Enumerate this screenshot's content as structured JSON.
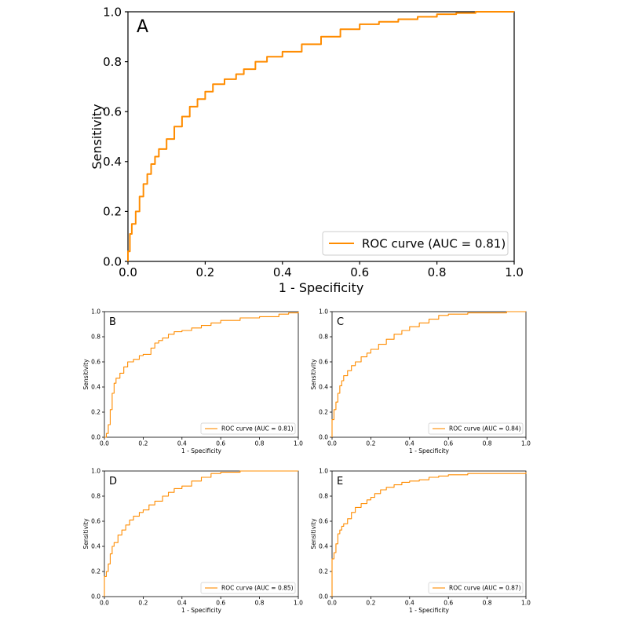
{
  "chart_data": [
    {
      "panel": "A",
      "type": "line",
      "xlabel": "1 - Specificity",
      "ylabel": "Sensitivity",
      "xlim": [
        0,
        1
      ],
      "ylim": [
        0,
        1
      ],
      "xticks": [
        "0.0",
        "0.2",
        "0.4",
        "0.6",
        "0.8",
        "1.0"
      ],
      "yticks": [
        "0.0",
        "0.2",
        "0.4",
        "0.6",
        "0.8",
        "1.0"
      ],
      "legend_placement": "bottom-right",
      "grid": false,
      "series": [
        {
          "name": "ROC curve (AUC = 0.81)",
          "color": "#ff8c00",
          "x": [
            0.0,
            0.0,
            0.005,
            0.01,
            0.02,
            0.03,
            0.04,
            0.05,
            0.06,
            0.07,
            0.08,
            0.1,
            0.12,
            0.14,
            0.16,
            0.18,
            0.2,
            0.22,
            0.25,
            0.28,
            0.3,
            0.33,
            0.36,
            0.4,
            0.45,
            0.5,
            0.55,
            0.6,
            0.65,
            0.7,
            0.75,
            0.8,
            0.85,
            0.9,
            0.95,
            1.0
          ],
          "y": [
            0.0,
            0.04,
            0.11,
            0.15,
            0.2,
            0.26,
            0.31,
            0.35,
            0.39,
            0.42,
            0.45,
            0.49,
            0.54,
            0.58,
            0.62,
            0.65,
            0.68,
            0.71,
            0.73,
            0.75,
            0.77,
            0.8,
            0.82,
            0.84,
            0.87,
            0.9,
            0.93,
            0.95,
            0.96,
            0.97,
            0.98,
            0.99,
            0.995,
            1.0,
            1.0,
            1.0
          ]
        }
      ]
    },
    {
      "panel": "B",
      "type": "line",
      "xlabel": "1 - Specificity",
      "ylabel": "Sensitivity",
      "xlim": [
        0,
        1
      ],
      "ylim": [
        0,
        1
      ],
      "xticks": [
        "0.0",
        "0.2",
        "0.4",
        "0.6",
        "0.8",
        "1.0"
      ],
      "yticks": [
        "0.0",
        "0.2",
        "0.4",
        "0.6",
        "0.8",
        "1.0"
      ],
      "legend_placement": "bottom-right",
      "grid": false,
      "series": [
        {
          "name": "ROC curve (AUC = 0.81)",
          "color": "#ff8c00",
          "x": [
            0.0,
            0.01,
            0.02,
            0.03,
            0.04,
            0.05,
            0.06,
            0.08,
            0.1,
            0.12,
            0.15,
            0.18,
            0.2,
            0.24,
            0.26,
            0.28,
            0.3,
            0.33,
            0.36,
            0.4,
            0.45,
            0.5,
            0.55,
            0.6,
            0.7,
            0.8,
            0.9,
            0.95,
            1.0
          ],
          "y": [
            0.0,
            0.03,
            0.1,
            0.22,
            0.35,
            0.43,
            0.47,
            0.51,
            0.56,
            0.6,
            0.62,
            0.65,
            0.66,
            0.71,
            0.75,
            0.77,
            0.79,
            0.82,
            0.84,
            0.85,
            0.87,
            0.89,
            0.91,
            0.93,
            0.95,
            0.96,
            0.98,
            0.99,
            1.0
          ]
        }
      ]
    },
    {
      "panel": "C",
      "type": "line",
      "xlabel": "1 - Specificity",
      "ylabel": "Sensitivity",
      "xlim": [
        0,
        1
      ],
      "ylim": [
        0,
        1
      ],
      "xticks": [
        "0.0",
        "0.2",
        "0.4",
        "0.6",
        "0.8",
        "1.0"
      ],
      "yticks": [
        "0.0",
        "0.2",
        "0.4",
        "0.6",
        "0.8",
        "1.0"
      ],
      "legend_placement": "bottom-right",
      "grid": false,
      "series": [
        {
          "name": "ROC curve (AUC = 0.84)",
          "color": "#ff8c00",
          "x": [
            0.0,
            0.0,
            0.01,
            0.02,
            0.03,
            0.04,
            0.05,
            0.06,
            0.08,
            0.1,
            0.12,
            0.15,
            0.18,
            0.2,
            0.24,
            0.28,
            0.32,
            0.36,
            0.4,
            0.45,
            0.5,
            0.55,
            0.6,
            0.7,
            0.8,
            0.9,
            1.0
          ],
          "y": [
            0.0,
            0.14,
            0.22,
            0.28,
            0.35,
            0.41,
            0.45,
            0.49,
            0.53,
            0.57,
            0.6,
            0.64,
            0.67,
            0.7,
            0.74,
            0.78,
            0.82,
            0.85,
            0.88,
            0.91,
            0.94,
            0.97,
            0.98,
            0.99,
            0.99,
            1.0,
            1.0
          ]
        }
      ]
    },
    {
      "panel": "D",
      "type": "line",
      "xlabel": "1 - Specificity",
      "ylabel": "Sensitivity",
      "xlim": [
        0,
        1
      ],
      "ylim": [
        0,
        1
      ],
      "xticks": [
        "0.0",
        "0.2",
        "0.4",
        "0.6",
        "0.8",
        "1.0"
      ],
      "yticks": [
        "0.0",
        "0.2",
        "0.4",
        "0.6",
        "0.8",
        "1.0"
      ],
      "legend_placement": "bottom-right",
      "grid": false,
      "series": [
        {
          "name": "ROC curve (AUC = 0.85)",
          "color": "#ff8c00",
          "x": [
            0.0,
            0.0,
            0.01,
            0.02,
            0.03,
            0.04,
            0.05,
            0.07,
            0.09,
            0.11,
            0.13,
            0.15,
            0.18,
            0.2,
            0.23,
            0.26,
            0.3,
            0.33,
            0.36,
            0.4,
            0.45,
            0.5,
            0.55,
            0.6,
            0.7,
            0.8,
            1.0
          ],
          "y": [
            0.0,
            0.16,
            0.2,
            0.26,
            0.34,
            0.4,
            0.43,
            0.49,
            0.53,
            0.57,
            0.61,
            0.64,
            0.67,
            0.69,
            0.73,
            0.76,
            0.8,
            0.83,
            0.86,
            0.88,
            0.92,
            0.95,
            0.98,
            0.99,
            1.0,
            1.0,
            1.0
          ]
        }
      ]
    },
    {
      "panel": "E",
      "type": "line",
      "xlabel": "1 - Specificity",
      "ylabel": "Sensitivity",
      "xlim": [
        0,
        1
      ],
      "ylim": [
        0,
        1
      ],
      "xticks": [
        "0.0",
        "0.2",
        "0.4",
        "0.6",
        "0.8",
        "1.0"
      ],
      "yticks": [
        "0.0",
        "0.2",
        "0.4",
        "0.6",
        "0.8",
        "1.0"
      ],
      "legend_placement": "bottom-right",
      "grid": false,
      "series": [
        {
          "name": "ROC curve (AUC = 0.87)",
          "color": "#ff8c00",
          "x": [
            0.0,
            0.0,
            0.01,
            0.02,
            0.03,
            0.04,
            0.05,
            0.06,
            0.08,
            0.1,
            0.12,
            0.15,
            0.18,
            0.2,
            0.22,
            0.25,
            0.28,
            0.32,
            0.36,
            0.4,
            0.45,
            0.5,
            0.55,
            0.6,
            0.7,
            0.8,
            1.0
          ],
          "y": [
            0.0,
            0.3,
            0.35,
            0.42,
            0.5,
            0.53,
            0.56,
            0.58,
            0.62,
            0.67,
            0.71,
            0.74,
            0.77,
            0.79,
            0.82,
            0.85,
            0.87,
            0.89,
            0.91,
            0.92,
            0.93,
            0.95,
            0.96,
            0.97,
            0.98,
            0.98,
            0.99
          ]
        }
      ]
    }
  ]
}
